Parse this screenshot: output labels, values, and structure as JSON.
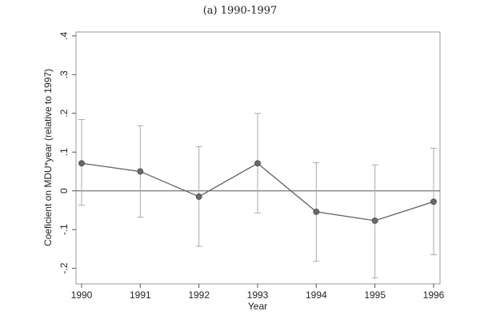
{
  "chart_data": {
    "type": "line",
    "title": "(a) 1990-1997",
    "xlabel": "Year",
    "ylabel": "Coeficient on MDU*year (relative to 1997)",
    "x": [
      1990,
      1991,
      1992,
      1993,
      1994,
      1995,
      1996
    ],
    "x_tick_labels": [
      "1990",
      "1991",
      "1992",
      "1993",
      "1994",
      "1995",
      "1996"
    ],
    "y_ticks": [
      -0.2,
      -0.1,
      0,
      0.1,
      0.2,
      0.3,
      0.4
    ],
    "y_tick_labels": [
      "-.2",
      "-.1",
      "0",
      ".1",
      ".2",
      ".3",
      ".4"
    ],
    "xlim": [
      1990,
      1996
    ],
    "ylim": [
      -0.24,
      0.41
    ],
    "series": [
      {
        "values": [
          0.071,
          0.05,
          -0.015,
          0.071,
          -0.054,
          -0.077,
          -0.028
        ],
        "ci_lower": [
          -0.037,
          -0.068,
          -0.143,
          -0.057,
          -0.182,
          -0.225,
          -0.165
        ],
        "ci_upper": [
          0.184,
          0.168,
          0.114,
          0.2,
          0.073,
          0.067,
          0.11
        ],
        "color": "#606060"
      }
    ],
    "reference_line_y": 0,
    "grid": false,
    "marker": "circle",
    "errorbar_color": "#aaaaaa"
  }
}
